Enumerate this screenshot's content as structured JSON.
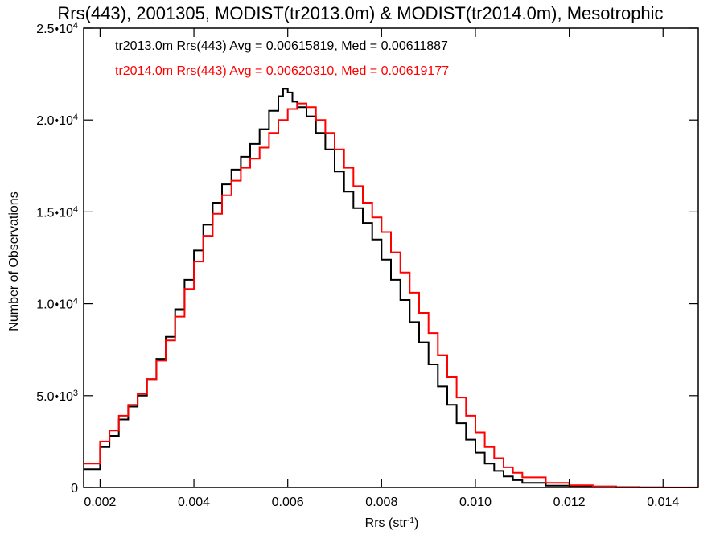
{
  "chart_data": {
    "type": "line",
    "title": "Rrs(443), 2001305, MODIST(tr2013.0m) & MODIST(tr2014.0m), Mesotrophic",
    "xlabel": "Rrs (str",
    "xlabel_sup": "-1",
    "xlabel_suffix": ")",
    "ylabel": "Number of Observations",
    "xlim": [
      0.00165,
      0.01475
    ],
    "ylim": [
      0,
      25000
    ],
    "x_ticks": [
      {
        "value": 0.002,
        "label": "0.002"
      },
      {
        "value": 0.004,
        "label": "0.004"
      },
      {
        "value": 0.006,
        "label": "0.006"
      },
      {
        "value": 0.008,
        "label": "0.008"
      },
      {
        "value": 0.01,
        "label": "0.010"
      },
      {
        "value": 0.012,
        "label": "0.012"
      },
      {
        "value": 0.014,
        "label": "0.014"
      }
    ],
    "y_ticks": [
      {
        "value": 0,
        "mant": "0",
        "exp": ""
      },
      {
        "value": 5000,
        "mant": "5.0•10",
        "exp": "3"
      },
      {
        "value": 10000,
        "mant": "1.0•10",
        "exp": "4"
      },
      {
        "value": 15000,
        "mant": "1.5•10",
        "exp": "4"
      },
      {
        "value": 20000,
        "mant": "2.0•10",
        "exp": "4"
      },
      {
        "value": 25000,
        "mant": "2.5•10",
        "exp": "4"
      }
    ],
    "stats": [
      {
        "text": "tr2013.0m Rrs(443) Avg = 0.00615819, Med = 0.00611887",
        "color": "#000000"
      },
      {
        "text": "tr2014.0m Rrs(443) Avg = 0.00620310, Med = 0.00619177",
        "color": "#ff0000"
      }
    ],
    "series": [
      {
        "color": "#000000",
        "x": [
          0.00165,
          0.002,
          0.0022,
          0.0024,
          0.0026,
          0.0028,
          0.003,
          0.0032,
          0.0034,
          0.0036,
          0.0038,
          0.004,
          0.0042,
          0.0044,
          0.0046,
          0.0048,
          0.005,
          0.0052,
          0.0054,
          0.0056,
          0.0058,
          0.0059,
          0.006,
          0.0061,
          0.0062,
          0.0064,
          0.0066,
          0.0068,
          0.007,
          0.0072,
          0.0074,
          0.0076,
          0.0078,
          0.008,
          0.0082,
          0.0084,
          0.0086,
          0.0088,
          0.009,
          0.0092,
          0.0094,
          0.0096,
          0.0098,
          0.01,
          0.0102,
          0.0104,
          0.0106,
          0.0108,
          0.011,
          0.0115,
          0.012,
          0.0125,
          0.013,
          0.0135,
          0.014,
          0.01475
        ],
        "y": [
          1000,
          2200,
          2800,
          3700,
          4400,
          5000,
          5900,
          7000,
          8200,
          9700,
          11300,
          12900,
          14300,
          15500,
          16500,
          17300,
          18000,
          18700,
          19500,
          20500,
          21300,
          21700,
          21500,
          21000,
          20700,
          20200,
          19300,
          18400,
          17200,
          16100,
          15200,
          14400,
          13500,
          12400,
          11300,
          10200,
          9000,
          7900,
          6700,
          5500,
          4500,
          3500,
          2600,
          1900,
          1300,
          900,
          600,
          400,
          250,
          100,
          50,
          20,
          10,
          5,
          0,
          0
        ]
      },
      {
        "color": "#ff0000",
        "x": [
          0.00165,
          0.002,
          0.0022,
          0.0024,
          0.0026,
          0.0028,
          0.003,
          0.0032,
          0.0034,
          0.0036,
          0.0038,
          0.004,
          0.0042,
          0.0044,
          0.0046,
          0.0048,
          0.005,
          0.0052,
          0.0054,
          0.0056,
          0.0058,
          0.006,
          0.0062,
          0.0063,
          0.0064,
          0.0066,
          0.0068,
          0.007,
          0.0072,
          0.0074,
          0.0076,
          0.0078,
          0.008,
          0.0082,
          0.0084,
          0.0086,
          0.0088,
          0.009,
          0.0092,
          0.0094,
          0.0096,
          0.0098,
          0.01,
          0.0102,
          0.0104,
          0.0106,
          0.0108,
          0.011,
          0.0115,
          0.012,
          0.0125,
          0.013,
          0.0135,
          0.014,
          0.01475
        ],
        "y": [
          1300,
          2500,
          3100,
          3900,
          4500,
          5100,
          5900,
          6900,
          8000,
          9300,
          10800,
          12300,
          13700,
          14900,
          15900,
          16700,
          17400,
          17900,
          18500,
          19300,
          20000,
          20600,
          20900,
          20900,
          20700,
          20000,
          19300,
          18400,
          17400,
          16400,
          15500,
          14700,
          13900,
          12800,
          11700,
          10600,
          9500,
          8400,
          7200,
          6000,
          4900,
          3900,
          3000,
          2200,
          1600,
          1100,
          800,
          550,
          250,
          120,
          60,
          25,
          10,
          5,
          0
        ]
      }
    ]
  }
}
